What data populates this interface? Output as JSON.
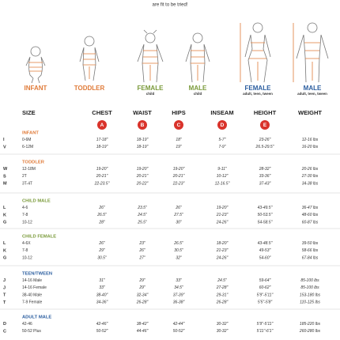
{
  "header": {
    "note": "are fit to be tried!"
  },
  "figures": [
    {
      "label": "INFANT"
    },
    {
      "label": "TODDLER"
    },
    {
      "label": "FEMALE",
      "sublabel": "child"
    },
    {
      "label": "MALE",
      "sublabel": "child"
    },
    {
      "label": "FEMALE",
      "sublabel": "adult, teen, tween"
    },
    {
      "label": "MALE",
      "sublabel": "adult, teen, tween"
    }
  ],
  "table": {
    "columns": [
      "SIZE",
      "CHEST",
      "WAIST",
      "HIPS",
      "INSEAM",
      "HEIGHT",
      "WEIGHT"
    ],
    "badges": [
      "A",
      "B",
      "C",
      "D",
      "E"
    ],
    "sections": [
      {
        "title": "INFANT",
        "rows": [
          [
            "I",
            "0-6M",
            "17-18\"",
            "18-19\"",
            "18\"",
            "5-7\"",
            "23-26\"",
            "12-16 lbs"
          ],
          [
            "V",
            "6-12M",
            "18-19\"",
            "18-19\"",
            "19\"",
            "7-9\"",
            "26.5-29.5\"",
            "16-20 lbs"
          ]
        ]
      },
      {
        "title": "TODDLER",
        "rows": [
          [
            "W",
            "12-18M",
            "19-20\"",
            "19-20\"",
            "19-20\"",
            "9-11\"",
            "28-32\"",
            "20-26 lbs"
          ],
          [
            "S",
            "2T",
            "20-21\"",
            "20-21\"",
            "20-21\"",
            "10-12\"",
            "33-36\"",
            "27-30 lbs"
          ],
          [
            "M",
            "3T-4T",
            "22-23.5\"",
            "20-22\"",
            "22-23\"",
            "12-16.5\"",
            "37-43\"",
            "34-38 lbs"
          ]
        ]
      },
      {
        "title": "CHILD MALE",
        "rows": [
          [
            "L",
            "4-6",
            "26\"",
            "23.5\"",
            "26\"",
            "19-20\"",
            "43-49.5\"",
            "36-47 lbs"
          ],
          [
            "K",
            "7-8",
            "26.5\"",
            "24.5\"",
            "27.5\"",
            "21-23\"",
            "50-53.5\"",
            "48-60 lbs"
          ],
          [
            "G",
            "10-12",
            "28\"",
            "25.5\"",
            "30\"",
            "24-26\"",
            "54-58.5\"",
            "60-87 lbs"
          ]
        ]
      },
      {
        "title": "CHILD FEMALE",
        "rows": [
          [
            "L",
            "4-6X",
            "26\"",
            "23\"",
            "26.5\"",
            "18-20\"",
            "43-48.5\"",
            "39-50 lbs"
          ],
          [
            "K",
            "7-8",
            "29\"",
            "26\"",
            "30.5\"",
            "21-23\"",
            "49-53\"",
            "58-66 lbs"
          ],
          [
            "G",
            "10-12",
            "30.5\"",
            "27\"",
            "32\"",
            "24-26\"",
            "54-60\"",
            "67-84 lbs"
          ]
        ]
      },
      {
        "title": "TEEN/TWEEN",
        "rows": [
          [
            "J",
            "14-16 Male",
            "31\"",
            "29\"",
            "33\"",
            "24.5\"",
            "59-64\"",
            "85-100 lbs"
          ],
          [
            "J",
            "14-16 Female",
            "33\"",
            "29\"",
            "34.5\"",
            "27-28\"",
            "60-62\"",
            "85-100 lbs"
          ],
          [
            "T",
            "38-40 Male",
            "38-40\"",
            "32-34\"",
            "37-39\"",
            "29-31\"",
            "5'9\"-5'11\"",
            "153-180 lbs"
          ],
          [
            "T",
            "7-9 Female",
            "34-36\"",
            "26-28\"",
            "36-38\"",
            "26-28\"",
            "5'5\"-5'8\"",
            "110-125 lbs"
          ]
        ]
      },
      {
        "title": "ADULT MALE",
        "rows": [
          [
            "D",
            "42-46",
            "42-46\"",
            "38-42\"",
            "42-44\"",
            "30-32\"",
            "5'9\"-5'11\"",
            "185-220 lbs"
          ],
          [
            "C",
            "50-52 Plus",
            "50-52\"",
            "44-46\"",
            "50-52\"",
            "30-32\"",
            "5'11\"-6'1\"",
            "260-280 lbs"
          ]
        ]
      }
    ]
  }
}
